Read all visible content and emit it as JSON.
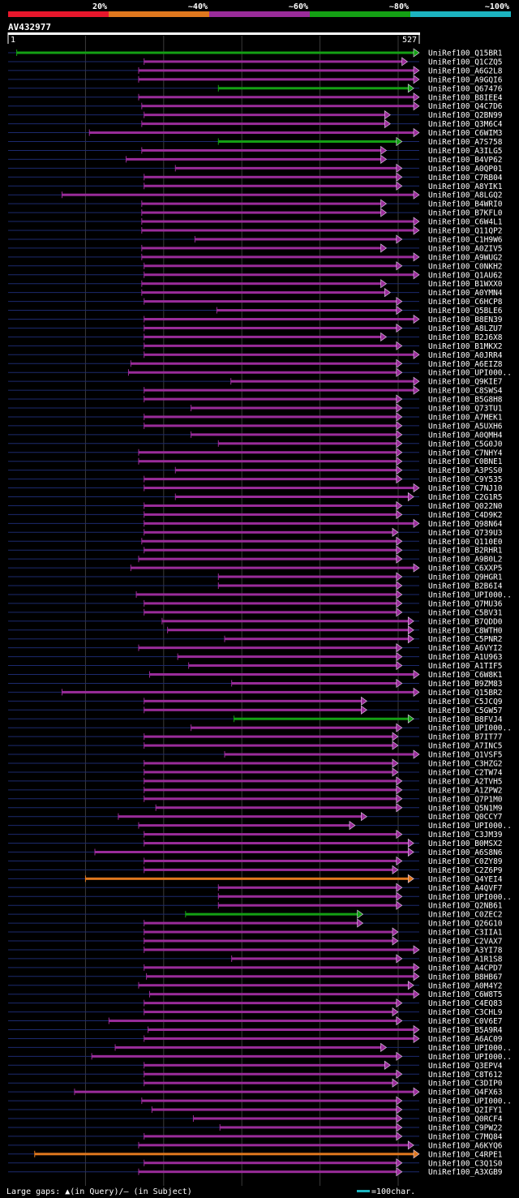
{
  "chart_data": {
    "type": "alignment-overview",
    "query": {
      "name": "AV432977",
      "start": 1,
      "end": 527
    },
    "identity_scale": [
      {
        "label": "20%",
        "color": "#e8172c"
      },
      {
        "label": "~40%",
        "color": "#e0781e"
      },
      {
        "label": "~60%",
        "color": "#9a2c9a"
      },
      {
        "label": "~80%",
        "color": "#14a014"
      },
      {
        "label": "~100%",
        "color": "#1cb4c0"
      }
    ],
    "footer": {
      "legend": "Large gaps: ▲(in Query)/– (in Subject)",
      "scale_label": "=100char."
    },
    "hits": [
      {
        "id": "UniRef100_Q15BR1",
        "start": 12,
        "end": 527,
        "color": "green",
        "fwd": true
      },
      {
        "id": "UniRef100_Q1CZQ5",
        "start": 175,
        "end": 512,
        "color": "purple",
        "fwd": false
      },
      {
        "id": "UniRef100_A6G2L8",
        "start": 168,
        "end": 527,
        "color": "purple",
        "fwd": true
      },
      {
        "id": "UniRef100_A9GQI6",
        "start": 168,
        "end": 527,
        "color": "purple",
        "fwd": true
      },
      {
        "id": "UniRef100_Q67476",
        "start": 270,
        "end": 520,
        "color": "green",
        "fwd": true
      },
      {
        "id": "UniRef100_B8IEE4",
        "start": 168,
        "end": 527,
        "color": "purple",
        "fwd": true
      },
      {
        "id": "UniRef100_Q4C7D6",
        "start": 172,
        "end": 527,
        "color": "purple",
        "fwd": true
      },
      {
        "id": "UniRef100_Q2BN99",
        "start": 175,
        "end": 490,
        "color": "purple",
        "fwd": true
      },
      {
        "id": "UniRef100_Q3M6C4",
        "start": 172,
        "end": 490,
        "color": "purple",
        "fwd": true
      },
      {
        "id": "UniRef100_C6WIM3",
        "start": 105,
        "end": 527,
        "color": "purple",
        "fwd": true
      },
      {
        "id": "UniRef100_A7S758",
        "start": 270,
        "end": 505,
        "color": "green",
        "fwd": true
      },
      {
        "id": "UniRef100_A3ILG5",
        "start": 172,
        "end": 485,
        "color": "purple",
        "fwd": false
      },
      {
        "id": "UniRef100_B4VP62",
        "start": 152,
        "end": 485,
        "color": "purple",
        "fwd": false
      },
      {
        "id": "UniRef100_A0QP01",
        "start": 215,
        "end": 505,
        "color": "purple",
        "fwd": true
      },
      {
        "id": "UniRef100_C7RB04",
        "start": 175,
        "end": 505,
        "color": "purple",
        "fwd": false
      },
      {
        "id": "UniRef100_A8YIK1",
        "start": 175,
        "end": 505,
        "color": "purple",
        "fwd": false
      },
      {
        "id": "UniRef100_A8LGQ2",
        "start": 70,
        "end": 527,
        "color": "purple",
        "fwd": true
      },
      {
        "id": "UniRef100_B4WRI0",
        "start": 172,
        "end": 485,
        "color": "purple",
        "fwd": false
      },
      {
        "id": "UniRef100_B7KFL0",
        "start": 172,
        "end": 485,
        "color": "purple",
        "fwd": true
      },
      {
        "id": "UniRef100_C6W4L1",
        "start": 172,
        "end": 527,
        "color": "purple",
        "fwd": true
      },
      {
        "id": "UniRef100_Q11QP2",
        "start": 172,
        "end": 527,
        "color": "purple",
        "fwd": true
      },
      {
        "id": "UniRef100_C1H9W6",
        "start": 240,
        "end": 505,
        "color": "purple",
        "fwd": true
      },
      {
        "id": "UniRef100_A0ZIV5",
        "start": 172,
        "end": 485,
        "color": "purple",
        "fwd": true
      },
      {
        "id": "UniRef100_A9WUG2",
        "start": 172,
        "end": 527,
        "color": "purple",
        "fwd": true
      },
      {
        "id": "UniRef100_C0NKH2",
        "start": 175,
        "end": 505,
        "color": "purple",
        "fwd": true
      },
      {
        "id": "UniRef100_Q1AU62",
        "start": 175,
        "end": 527,
        "color": "purple",
        "fwd": true
      },
      {
        "id": "UniRef100_B1WXX0",
        "start": 172,
        "end": 485,
        "color": "purple",
        "fwd": true
      },
      {
        "id": "UniRef100_A0YMN4",
        "start": 172,
        "end": 490,
        "color": "purple",
        "fwd": true
      },
      {
        "id": "UniRef100_C6HCP8",
        "start": 175,
        "end": 505,
        "color": "purple",
        "fwd": true
      },
      {
        "id": "UniRef100_Q5BLE6",
        "start": 268,
        "end": 505,
        "color": "purple",
        "fwd": true
      },
      {
        "id": "UniRef100_B8EN39",
        "start": 175,
        "end": 527,
        "color": "purple",
        "fwd": true
      },
      {
        "id": "UniRef100_A8LZU7",
        "start": 175,
        "end": 505,
        "color": "purple",
        "fwd": true
      },
      {
        "id": "UniRef100_B2J6X8",
        "start": 175,
        "end": 485,
        "color": "purple",
        "fwd": true
      },
      {
        "id": "UniRef100_B1MKX2",
        "start": 175,
        "end": 505,
        "color": "purple",
        "fwd": true
      },
      {
        "id": "UniRef100_A0JRR4",
        "start": 175,
        "end": 527,
        "color": "purple",
        "fwd": true
      },
      {
        "id": "UniRef100_A6EIZ8",
        "start": 158,
        "end": 505,
        "color": "purple",
        "fwd": false
      },
      {
        "id": "UniRef100_UPI000..",
        "start": 155,
        "end": 505,
        "color": "purple",
        "fwd": false
      },
      {
        "id": "UniRef100_Q9KIE7",
        "start": 286,
        "end": 527,
        "color": "purple",
        "fwd": true
      },
      {
        "id": "UniRef100_C8SWS4",
        "start": 175,
        "end": 527,
        "color": "purple",
        "fwd": true
      },
      {
        "id": "UniRef100_B5G8H8",
        "start": 175,
        "end": 505,
        "color": "purple",
        "fwd": true
      },
      {
        "id": "UniRef100_Q73TU1",
        "start": 235,
        "end": 505,
        "color": "purple",
        "fwd": true
      },
      {
        "id": "UniRef100_A7MEK1",
        "start": 175,
        "end": 505,
        "color": "purple",
        "fwd": true
      },
      {
        "id": "UniRef100_A5UXH6",
        "start": 175,
        "end": 505,
        "color": "purple",
        "fwd": true
      },
      {
        "id": "UniRef100_A0QMH4",
        "start": 235,
        "end": 505,
        "color": "purple",
        "fwd": true
      },
      {
        "id": "UniRef100_C5G0J0",
        "start": 270,
        "end": 505,
        "color": "purple",
        "fwd": true
      },
      {
        "id": "UniRef100_C7NHY4",
        "start": 168,
        "end": 505,
        "color": "purple",
        "fwd": true
      },
      {
        "id": "UniRef100_C0BNE1",
        "start": 168,
        "end": 505,
        "color": "purple",
        "fwd": true
      },
      {
        "id": "UniRef100_A3PSS0",
        "start": 215,
        "end": 505,
        "color": "purple",
        "fwd": true
      },
      {
        "id": "UniRef100_C9Y535",
        "start": 175,
        "end": 505,
        "color": "purple",
        "fwd": true
      },
      {
        "id": "UniRef100_C7NJ10",
        "start": 175,
        "end": 527,
        "color": "purple",
        "fwd": true
      },
      {
        "id": "UniRef100_C2G1R5",
        "start": 215,
        "end": 520,
        "color": "purple",
        "fwd": true
      },
      {
        "id": "UniRef100_Q022N0",
        "start": 175,
        "end": 505,
        "color": "purple",
        "fwd": true
      },
      {
        "id": "UniRef100_C4D9K2",
        "start": 175,
        "end": 505,
        "color": "purple",
        "fwd": true
      },
      {
        "id": "UniRef100_Q98N64",
        "start": 175,
        "end": 527,
        "color": "purple",
        "fwd": true
      },
      {
        "id": "UniRef100_Q739U3",
        "start": 175,
        "end": 500,
        "color": "purple",
        "fwd": true
      },
      {
        "id": "UniRef100_Q110E0",
        "start": 172,
        "end": 505,
        "color": "purple",
        "fwd": true
      },
      {
        "id": "UniRef100_B2RHR1",
        "start": 175,
        "end": 505,
        "color": "purple",
        "fwd": true
      },
      {
        "id": "UniRef100_A9B0L2",
        "start": 168,
        "end": 505,
        "color": "purple",
        "fwd": true
      },
      {
        "id": "UniRef100_C6XXP5",
        "start": 158,
        "end": 527,
        "color": "purple",
        "fwd": true
      },
      {
        "id": "UniRef100_Q9HGR1",
        "start": 270,
        "end": 505,
        "color": "purple",
        "fwd": true
      },
      {
        "id": "UniRef100_B2B6I4",
        "start": 270,
        "end": 505,
        "color": "purple",
        "fwd": true
      },
      {
        "id": "UniRef100_UPI000..",
        "start": 165,
        "end": 505,
        "color": "purple",
        "fwd": true
      },
      {
        "id": "UniRef100_Q7MU36",
        "start": 175,
        "end": 505,
        "color": "purple",
        "fwd": true
      },
      {
        "id": "UniRef100_C5BV31",
        "start": 175,
        "end": 505,
        "color": "purple",
        "fwd": true
      },
      {
        "id": "UniRef100_B7QDD0",
        "start": 198,
        "end": 520,
        "color": "purple",
        "fwd": true
      },
      {
        "id": "UniRef100_C8WTH0",
        "start": 205,
        "end": 520,
        "color": "purple",
        "fwd": true
      },
      {
        "id": "UniRef100_C5PNR2",
        "start": 278,
        "end": 520,
        "color": "purple",
        "fwd": true
      },
      {
        "id": "UniRef100_A6VYI2",
        "start": 168,
        "end": 505,
        "color": "purple",
        "fwd": true
      },
      {
        "id": "UniRef100_A1U963",
        "start": 218,
        "end": 505,
        "color": "purple",
        "fwd": true
      },
      {
        "id": "UniRef100_A1TIF5",
        "start": 232,
        "end": 505,
        "color": "purple",
        "fwd": true
      },
      {
        "id": "UniRef100_C6W8K1",
        "start": 182,
        "end": 527,
        "color": "purple",
        "fwd": true
      },
      {
        "id": "UniRef100_B9ZM83",
        "start": 287,
        "end": 505,
        "color": "purple",
        "fwd": true
      },
      {
        "id": "UniRef100_Q15BR2",
        "start": 70,
        "end": 527,
        "color": "purple",
        "fwd": true
      },
      {
        "id": "UniRef100_C5JCQ9",
        "start": 175,
        "end": 460,
        "color": "purple",
        "fwd": true
      },
      {
        "id": "UniRef100_C5GW57",
        "start": 175,
        "end": 460,
        "color": "purple",
        "fwd": true
      },
      {
        "id": "UniRef100_B8FVJ4",
        "start": 290,
        "end": 520,
        "color": "green",
        "fwd": true
      },
      {
        "id": "UniRef100_UPI000..",
        "start": 235,
        "end": 505,
        "color": "purple",
        "fwd": true
      },
      {
        "id": "UniRef100_B7IT77",
        "start": 175,
        "end": 500,
        "color": "purple",
        "fwd": true
      },
      {
        "id": "UniRef100_A7INC5",
        "start": 175,
        "end": 500,
        "color": "purple",
        "fwd": true
      },
      {
        "id": "UniRef100_Q1VSF5",
        "start": 278,
        "end": 527,
        "color": "purple",
        "fwd": true
      },
      {
        "id": "UniRef100_C3HZG2",
        "start": 175,
        "end": 500,
        "color": "purple",
        "fwd": true
      },
      {
        "id": "UniRef100_C2TW74",
        "start": 175,
        "end": 500,
        "color": "purple",
        "fwd": true
      },
      {
        "id": "UniRef100_A2TVH5",
        "start": 175,
        "end": 505,
        "color": "purple",
        "fwd": true
      },
      {
        "id": "UniRef100_A1ZPW2",
        "start": 175,
        "end": 505,
        "color": "purple",
        "fwd": true
      },
      {
        "id": "UniRef100_Q7P1M0",
        "start": 175,
        "end": 505,
        "color": "purple",
        "fwd": true
      },
      {
        "id": "UniRef100_Q5N1M9",
        "start": 190,
        "end": 505,
        "color": "purple",
        "fwd": true
      },
      {
        "id": "UniRef100_Q0CCY7",
        "start": 142,
        "end": 460,
        "color": "purple",
        "fwd": true
      },
      {
        "id": "UniRef100_UPI000..",
        "start": 168,
        "end": 445,
        "color": "purple",
        "fwd": true
      },
      {
        "id": "UniRef100_C3JM39",
        "start": 175,
        "end": 505,
        "color": "purple",
        "fwd": true
      },
      {
        "id": "UniRef100_B0MSX2",
        "start": 175,
        "end": 520,
        "color": "purple",
        "fwd": true
      },
      {
        "id": "UniRef100_A6S8N6",
        "start": 112,
        "end": 520,
        "color": "purple",
        "fwd": true
      },
      {
        "id": "UniRef100_C0ZY89",
        "start": 175,
        "end": 505,
        "color": "purple",
        "fwd": true
      },
      {
        "id": "UniRef100_C2Z6P9",
        "start": 175,
        "end": 500,
        "color": "purple",
        "fwd": true
      },
      {
        "id": "UniRef100_Q4YEI4",
        "start": 100,
        "end": 520,
        "color": "orange",
        "fwd": true
      },
      {
        "id": "UniRef100_A4QVF7",
        "start": 270,
        "end": 505,
        "color": "purple",
        "fwd": true
      },
      {
        "id": "UniRef100_UPI000..",
        "start": 270,
        "end": 505,
        "color": "purple",
        "fwd": true
      },
      {
        "id": "UniRef100_Q2NB61",
        "start": 270,
        "end": 505,
        "color": "purple",
        "fwd": true
      },
      {
        "id": "UniRef100_C0ZEC2",
        "start": 228,
        "end": 455,
        "color": "green",
        "fwd": true
      },
      {
        "id": "UniRef100_Q26G10",
        "start": 175,
        "end": 455,
        "color": "purple",
        "fwd": true
      },
      {
        "id": "UniRef100_C3IIA1",
        "start": 175,
        "end": 500,
        "color": "purple",
        "fwd": true
      },
      {
        "id": "UniRef100_C2VAX7",
        "start": 175,
        "end": 500,
        "color": "purple",
        "fwd": true
      },
      {
        "id": "UniRef100_A3YI78",
        "start": 175,
        "end": 527,
        "color": "purple",
        "fwd": true
      },
      {
        "id": "UniRef100_A1R1S8",
        "start": 287,
        "end": 505,
        "color": "purple",
        "fwd": true
      },
      {
        "id": "UniRef100_A4CPD7",
        "start": 175,
        "end": 527,
        "color": "purple",
        "fwd": true
      },
      {
        "id": "UniRef100_B8HB67",
        "start": 178,
        "end": 527,
        "color": "purple",
        "fwd": true
      },
      {
        "id": "UniRef100_A0M4Y2",
        "start": 168,
        "end": 520,
        "color": "purple",
        "fwd": true
      },
      {
        "id": "UniRef100_C6W8T5",
        "start": 182,
        "end": 527,
        "color": "purple",
        "fwd": true
      },
      {
        "id": "UniRef100_C4EQ83",
        "start": 175,
        "end": 505,
        "color": "purple",
        "fwd": true
      },
      {
        "id": "UniRef100_C3CHL9",
        "start": 175,
        "end": 500,
        "color": "purple",
        "fwd": true
      },
      {
        "id": "UniRef100_C0V6E7",
        "start": 130,
        "end": 505,
        "color": "purple",
        "fwd": true
      },
      {
        "id": "UniRef100_B5A9R4",
        "start": 180,
        "end": 527,
        "color": "purple",
        "fwd": true
      },
      {
        "id": "UniRef100_A6AC09",
        "start": 175,
        "end": 527,
        "color": "purple",
        "fwd": true
      },
      {
        "id": "UniRef100_UPI000..",
        "start": 138,
        "end": 485,
        "color": "purple",
        "fwd": true
      },
      {
        "id": "UniRef100_UPI000..",
        "start": 108,
        "end": 505,
        "color": "purple",
        "fwd": true
      },
      {
        "id": "UniRef100_Q3EPV4",
        "start": 175,
        "end": 490,
        "color": "purple",
        "fwd": true
      },
      {
        "id": "UniRef100_C8T612",
        "start": 175,
        "end": 505,
        "color": "purple",
        "fwd": true
      },
      {
        "id": "UniRef100_C3DIP0",
        "start": 175,
        "end": 500,
        "color": "purple",
        "fwd": true
      },
      {
        "id": "UniRef100_Q4FX63",
        "start": 86,
        "end": 527,
        "color": "purple",
        "fwd": true
      },
      {
        "id": "UniRef100_UPI000..",
        "start": 172,
        "end": 505,
        "color": "purple",
        "fwd": true
      },
      {
        "id": "UniRef100_Q2IFY1",
        "start": 185,
        "end": 505,
        "color": "purple",
        "fwd": true
      },
      {
        "id": "UniRef100_Q0RCF4",
        "start": 238,
        "end": 505,
        "color": "purple",
        "fwd": true
      },
      {
        "id": "UniRef100_C9PW22",
        "start": 272,
        "end": 505,
        "color": "purple",
        "fwd": true
      },
      {
        "id": "UniRef100_C7MQ84",
        "start": 175,
        "end": 505,
        "color": "purple",
        "fwd": true
      },
      {
        "id": "UniRef100_A6KYQ6",
        "start": 168,
        "end": 520,
        "color": "purple",
        "fwd": true
      },
      {
        "id": "UniRef100_C4RPE1",
        "start": 35,
        "end": 527,
        "color": "orange",
        "fwd": true
      },
      {
        "id": "UniRef100_C3Q1S0",
        "start": 175,
        "end": 505,
        "color": "purple",
        "fwd": true
      },
      {
        "id": "UniRef100_A3XGB9",
        "start": 168,
        "end": 505,
        "color": "purple",
        "fwd": true
      }
    ]
  }
}
